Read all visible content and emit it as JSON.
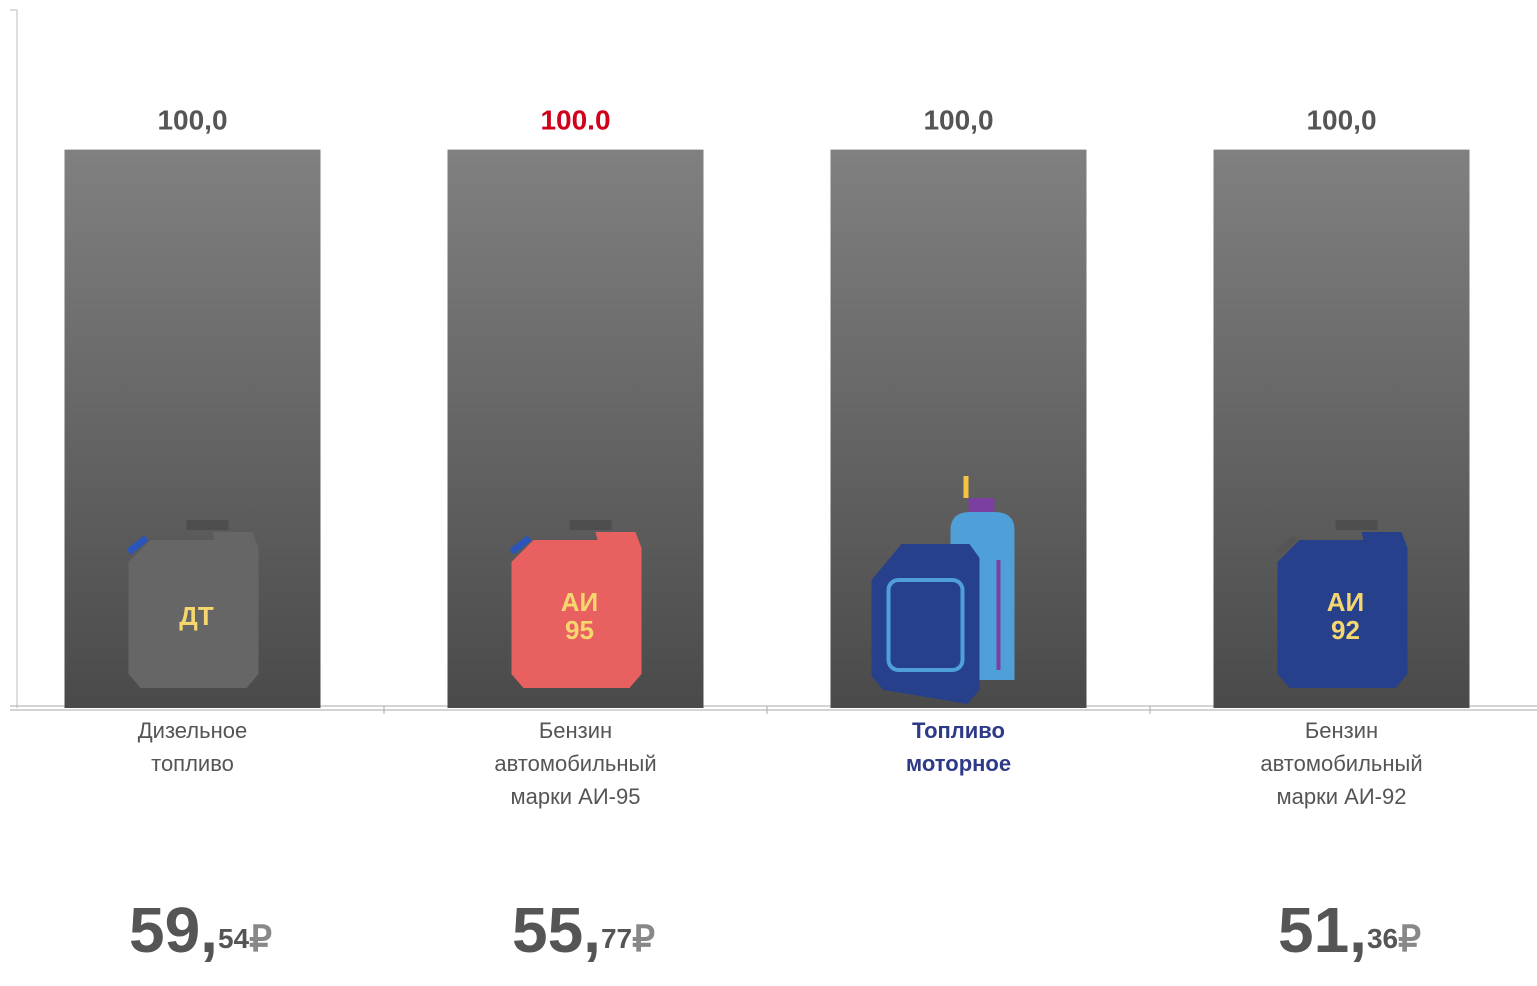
{
  "chart_data": {
    "type": "bar",
    "categories": [
      "Дизельное топливо",
      "Бензин автомобильный марки АИ-95",
      "Топливо моторное",
      "Бензин автомобильный марки АИ-92"
    ],
    "values": [
      100,
      100,
      100,
      100
    ],
    "value_labels": [
      "100,0",
      "100.0",
      "100,0",
      "100,0"
    ],
    "value_label_colors": [
      "#555555",
      "#d0021b",
      "#555555",
      "#555555"
    ],
    "category_colors": [
      "#555555",
      "#555555",
      "#2e3a87",
      "#555555"
    ],
    "category_bold": [
      false,
      false,
      true,
      false
    ],
    "ylim": [
      0,
      125
    ],
    "icon_labels": [
      [
        "ДТ"
      ],
      [
        "АИ",
        "95"
      ],
      null,
      [
        "АИ",
        "92"
      ]
    ],
    "prices": [
      {
        "whole": "59,",
        "fraction": "54"
      },
      {
        "whole": "55,",
        "fraction": "77"
      },
      null,
      {
        "whole": "51,",
        "fraction": "36"
      }
    ],
    "currency": "₽"
  }
}
